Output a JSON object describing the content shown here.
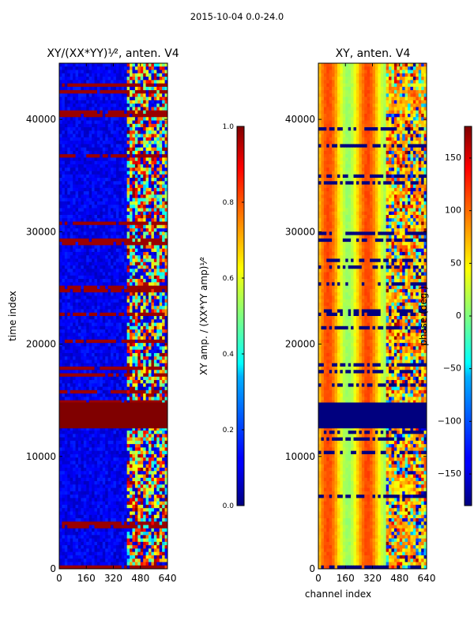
{
  "figure": {
    "suptitle": "2015-10-04 0.0-24.0"
  },
  "chart_data": [
    {
      "type": "heatmap",
      "title": "XY/(XX*YY)¹⁄², anten. V4",
      "xlabel": "",
      "ylabel": "time index",
      "xlim": [
        0,
        640
      ],
      "ylim": [
        0,
        45000
      ],
      "xticks": [
        "0",
        "160",
        "320",
        "480",
        "640"
      ],
      "yticks": [
        "0",
        "10000",
        "20000",
        "30000",
        "40000"
      ],
      "colormap": "jet",
      "masked_band_y": [
        12500,
        14800
      ],
      "masked_band_color": "#800000",
      "description_values": "low amplitude (~0.05) for channels 0-400, noisy high amplitude (0.3-1.0) for channels 400-640",
      "colorbar": {
        "label": "XY amp. / (XX*YY amp)¹⁄²",
        "range": [
          0.0,
          1.0
        ],
        "ticks": [
          "0.0",
          "0.2",
          "0.4",
          "0.6",
          "0.8",
          "1.0"
        ]
      }
    },
    {
      "type": "heatmap",
      "title": "XY, anten. V4",
      "xlabel": "channel index",
      "ylabel": "",
      "xlim": [
        0,
        640
      ],
      "ylim": [
        0,
        45000
      ],
      "xticks": [
        "0",
        "160",
        "320",
        "480",
        "640"
      ],
      "yticks": [
        "0",
        "10000",
        "20000",
        "30000",
        "40000"
      ],
      "colormap": "jet",
      "masked_band_y": [
        12500,
        14800
      ],
      "masked_band_color": "#00007f",
      "description_values": "phase banded vertically between ~0 and ~120 deg, noisy for channels 400-640",
      "colorbar": {
        "label": "phase (deg.)",
        "range": [
          -180,
          180
        ],
        "ticks": [
          "−150",
          "−100",
          "−50",
          "0",
          "50",
          "100",
          "150"
        ]
      }
    }
  ]
}
